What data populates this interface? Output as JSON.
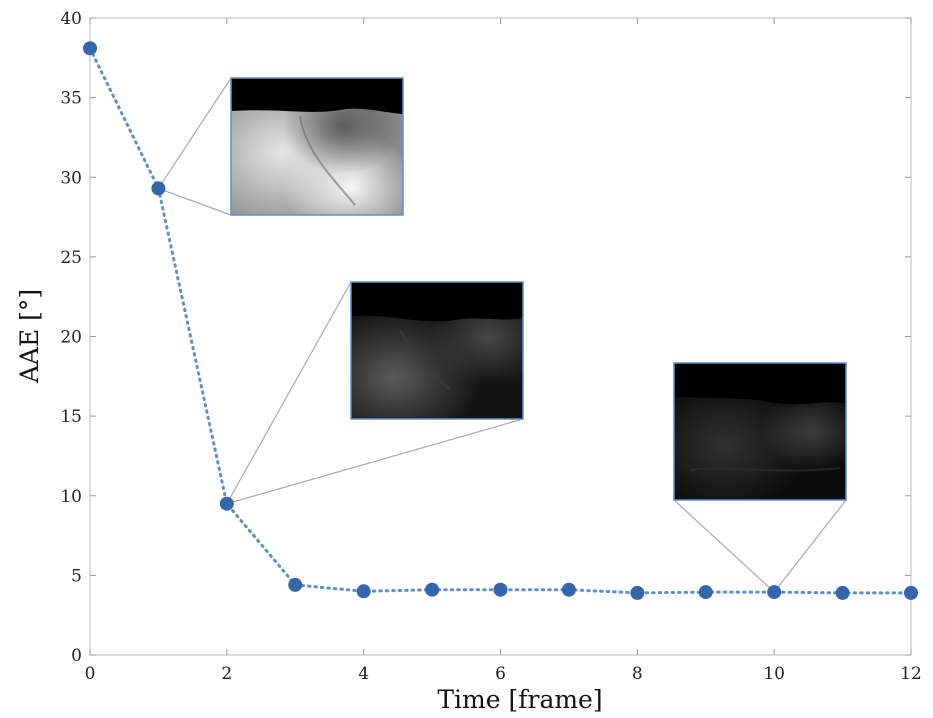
{
  "chart_data": {
    "type": "line",
    "xlabel": "Time [frame]",
    "ylabel": "AAE [°]",
    "xlim": [
      0,
      12
    ],
    "ylim": [
      0,
      40
    ],
    "xticks": [
      0,
      2,
      4,
      6,
      8,
      10,
      12
    ],
    "yticks": [
      0,
      5,
      10,
      15,
      20,
      25,
      30,
      35,
      40
    ],
    "grid": false,
    "series": [
      {
        "color": "#3366aa",
        "line_color": "#5b8fcf",
        "line_style": "dotted",
        "x": [
          0,
          1,
          2,
          3,
          4,
          5,
          6,
          7,
          8,
          9,
          10,
          11,
          12
        ],
        "y": [
          38.1,
          29.3,
          9.5,
          4.4,
          4.0,
          4.1,
          4.1,
          4.1,
          3.9,
          3.95,
          3.95,
          3.9,
          3.9
        ]
      }
    ],
    "insets": [
      {
        "frame": 1,
        "image": "flow-error-map-frame-1",
        "tone": "bright"
      },
      {
        "frame": 2,
        "image": "flow-error-map-frame-2",
        "tone": "medium"
      },
      {
        "frame": 10,
        "image": "flow-error-map-frame-10",
        "tone": "dark"
      }
    ]
  }
}
